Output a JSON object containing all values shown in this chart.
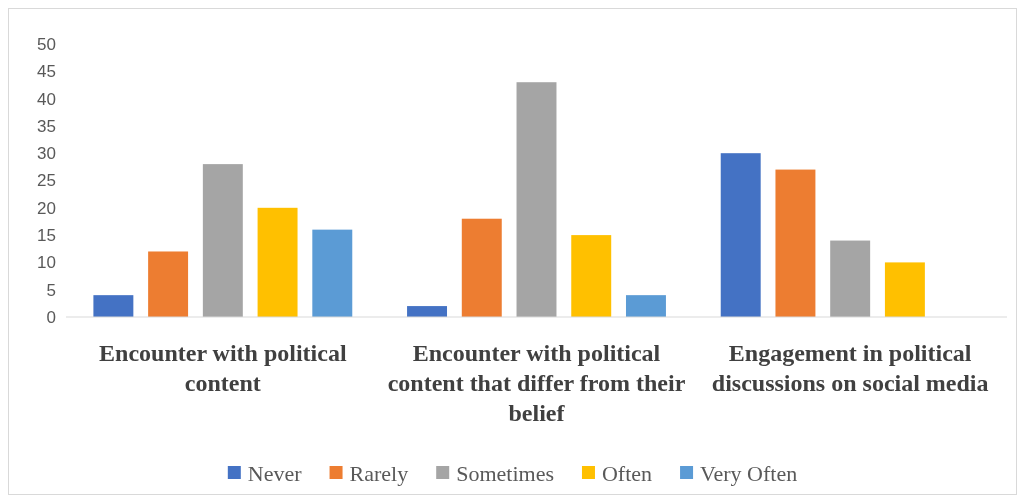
{
  "chart_data": {
    "type": "bar",
    "categories": [
      "Encounter with political content",
      "Encounter with political content that differ from their belief",
      "Engagement in political discussions on social media"
    ],
    "series": [
      {
        "name": "Never",
        "color": "#4472c4",
        "values": [
          4,
          2,
          30
        ]
      },
      {
        "name": "Rarely",
        "color": "#ed7d31",
        "values": [
          12,
          18,
          27
        ]
      },
      {
        "name": "Sometimes",
        "color": "#a5a5a5",
        "values": [
          28,
          43,
          14
        ]
      },
      {
        "name": "Often",
        "color": "#ffc000",
        "values": [
          20,
          15,
          10
        ]
      },
      {
        "name": "Very Often",
        "color": "#5b9bd5",
        "values": [
          16,
          4,
          0
        ]
      }
    ],
    "ylim": [
      0,
      50
    ],
    "yticks": [
      0,
      5,
      10,
      15,
      20,
      25,
      30,
      35,
      40,
      45,
      50
    ],
    "grid": false,
    "legend": "bottom"
  }
}
